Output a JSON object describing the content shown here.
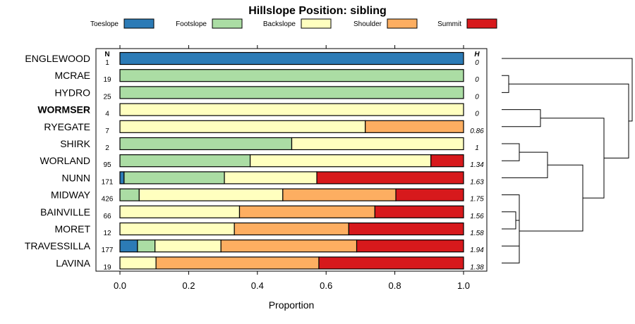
{
  "chart_data": {
    "type": "bar",
    "orientation": "horizontal-stacked",
    "title": "Hillslope Position: sibling",
    "xlabel": "Proportion",
    "xlim": [
      0,
      1
    ],
    "xticks": [
      "0.0",
      "0.2",
      "0.4",
      "0.6",
      "0.8",
      "1.0"
    ],
    "n_header": "N",
    "h_header": "H",
    "legend": [
      {
        "name": "Toeslope",
        "color": "#2c7bb6"
      },
      {
        "name": "Footslope",
        "color": "#abdda4"
      },
      {
        "name": "Backslope",
        "color": "#ffffbf"
      },
      {
        "name": "Shoulder",
        "color": "#fdae61"
      },
      {
        "name": "Summit",
        "color": "#d7191c"
      }
    ],
    "rows": [
      {
        "name": "ENGLEWOOD",
        "n": "1",
        "h": "0",
        "bold": false,
        "values": [
          1,
          0,
          0,
          0,
          0
        ]
      },
      {
        "name": "MCRAE",
        "n": "19",
        "h": "0",
        "bold": false,
        "values": [
          0,
          1,
          0,
          0,
          0
        ]
      },
      {
        "name": "HYDRO",
        "n": "25",
        "h": "0",
        "bold": false,
        "values": [
          0,
          1,
          0,
          0,
          0
        ]
      },
      {
        "name": "WORMSER",
        "n": "4",
        "h": "0",
        "bold": true,
        "values": [
          0,
          0,
          1,
          0,
          0
        ]
      },
      {
        "name": "RYEGATE",
        "n": "7",
        "h": "0.86",
        "bold": false,
        "values": [
          0,
          0,
          0.714,
          0.286,
          0
        ]
      },
      {
        "name": "SHIRK",
        "n": "2",
        "h": "1",
        "bold": false,
        "values": [
          0,
          0.5,
          0.5,
          0,
          0
        ]
      },
      {
        "name": "WORLAND",
        "n": "95",
        "h": "1.34",
        "bold": false,
        "values": [
          0,
          0.379,
          0.526,
          0,
          0.095
        ]
      },
      {
        "name": "NUNN",
        "n": "171",
        "h": "1.63",
        "bold": false,
        "values": [
          0.012,
          0.292,
          0.269,
          0,
          0.427
        ]
      },
      {
        "name": "MIDWAY",
        "n": "426",
        "h": "1.75",
        "bold": false,
        "values": [
          0,
          0.056,
          0.418,
          0.329,
          0.197
        ]
      },
      {
        "name": "BAINVILLE",
        "n": "66",
        "h": "1.56",
        "bold": false,
        "values": [
          0,
          0,
          0.348,
          0.394,
          0.258
        ]
      },
      {
        "name": "MORET",
        "n": "12",
        "h": "1.58",
        "bold": false,
        "values": [
          0,
          0,
          0.333,
          0.333,
          0.334
        ]
      },
      {
        "name": "TRAVESSILLA",
        "n": "177",
        "h": "1.94",
        "bold": false,
        "values": [
          0.051,
          0.051,
          0.192,
          0.395,
          0.311
        ]
      },
      {
        "name": "LAVINA",
        "n": "19",
        "h": "1.38",
        "bold": false,
        "values": [
          0,
          0,
          0.105,
          0.474,
          0.421
        ]
      }
    ],
    "dendrogram": {
      "leaves": [
        "ENGLEWOOD",
        "MCRAE",
        "HYDRO",
        "WORMSER",
        "RYEGATE",
        "SHIRK",
        "WORLAND",
        "NUNN",
        "MIDWAY",
        "BAINVILLE",
        "MORET",
        "TRAVESSILLA",
        "LAVINA"
      ],
      "merges": [
        {
          "a": "MCRAE",
          "b": "HYDRO",
          "height": 0.02
        },
        {
          "a": "SHIRK",
          "b": "WORLAND",
          "height": 0.05
        },
        {
          "a": "BAINVILLE",
          "b": "MORET",
          "height": 0.04
        },
        {
          "a": "TRAVESSILLA",
          "b": "LAVINA",
          "height": 0.05
        },
        {
          "a": "M2",
          "b": "NUNN",
          "height": 0.13
        },
        {
          "a": "MIDWAY",
          "b": "M3",
          "height": 0.05
        },
        {
          "a": "M6",
          "b": "M4",
          "height": 0.05
        },
        {
          "a": "WORMSER",
          "b": "RYEGATE",
          "height": 0.11
        },
        {
          "a": "M5",
          "b": "M7",
          "height": 0.23
        },
        {
          "a": "M8",
          "b": "M9",
          "height": 0.29
        },
        {
          "a": "M1",
          "b": "M10",
          "height": 0.36
        },
        {
          "a": "ENGLEWOOD",
          "b": "M11",
          "height": 0.37
        }
      ]
    }
  }
}
